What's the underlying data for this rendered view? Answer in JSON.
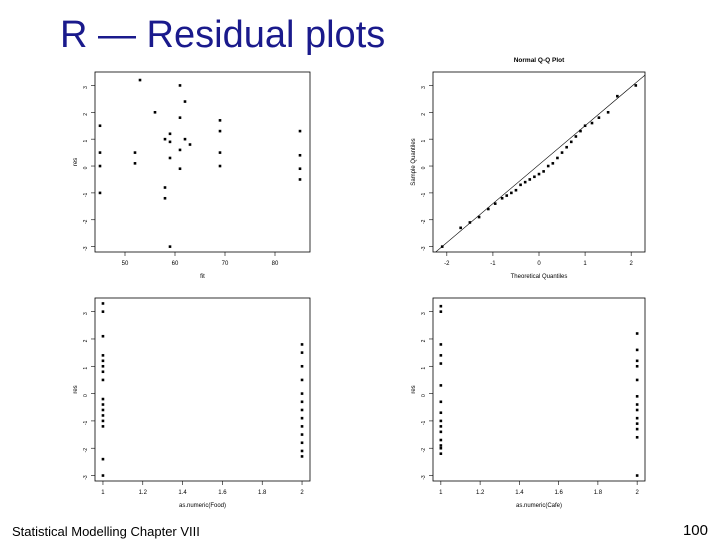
{
  "slide": {
    "title": "R — Residual plots",
    "footer_left": "Statistical Modelling   Chapter VIII",
    "page_number": "100"
  },
  "colors": {
    "title": "#1a1a8c",
    "points": "#000000",
    "frame": "#000000"
  },
  "chart_data": [
    {
      "type": "scatter",
      "title": "",
      "xlabel": "fit",
      "ylabel": "res",
      "xlim": [
        44,
        87
      ],
      "ylim": [
        -3.2,
        3.5
      ],
      "xticks": [
        50,
        60,
        70,
        80
      ],
      "yticks": [
        -3,
        -2,
        -1,
        0,
        1,
        2,
        3
      ],
      "grid": false,
      "points": [
        [
          45,
          1.5
        ],
        [
          45,
          0.5
        ],
        [
          45,
          0
        ],
        [
          45,
          -1
        ],
        [
          53,
          3.2
        ],
        [
          52,
          0.5
        ],
        [
          52,
          0.1
        ],
        [
          56,
          2.0
        ],
        [
          58,
          1.0
        ],
        [
          58,
          -0.8
        ],
        [
          58,
          -1.2
        ],
        [
          59,
          0.9
        ],
        [
          59,
          1.2
        ],
        [
          59,
          -3
        ],
        [
          59,
          0.3
        ],
        [
          61,
          3.0
        ],
        [
          61,
          1.8
        ],
        [
          61,
          -0.1
        ],
        [
          61,
          0.6
        ],
        [
          62,
          1.0
        ],
        [
          62,
          2.4
        ],
        [
          63,
          0.8
        ],
        [
          69,
          1.7
        ],
        [
          69,
          1.3
        ],
        [
          69,
          0.5
        ],
        [
          69,
          0
        ],
        [
          85,
          1.3
        ],
        [
          85,
          0.4
        ],
        [
          85,
          -0.1
        ],
        [
          85,
          -0.5
        ]
      ]
    },
    {
      "type": "scatter",
      "title": "Normal Q-Q Plot",
      "xlabel": "Theoretical Quantiles",
      "ylabel": "Sample Quantiles",
      "xlim": [
        -2.3,
        2.3
      ],
      "ylim": [
        -3.2,
        3.5
      ],
      "xticks": [
        -2,
        -1,
        0,
        1,
        2
      ],
      "yticks": [
        -3,
        -2,
        -1,
        0,
        1,
        2,
        3
      ],
      "grid": false,
      "reference_line": true,
      "points": [
        [
          -2.1,
          -3.0
        ],
        [
          -1.7,
          -2.3
        ],
        [
          -1.5,
          -2.1
        ],
        [
          -1.3,
          -1.9
        ],
        [
          -1.1,
          -1.6
        ],
        [
          -0.95,
          -1.4
        ],
        [
          -0.8,
          -1.2
        ],
        [
          -0.7,
          -1.1
        ],
        [
          -0.6,
          -1.0
        ],
        [
          -0.5,
          -0.9
        ],
        [
          -0.4,
          -0.7
        ],
        [
          -0.3,
          -0.6
        ],
        [
          -0.2,
          -0.5
        ],
        [
          -0.1,
          -0.4
        ],
        [
          0,
          -0.3
        ],
        [
          0.1,
          -0.2
        ],
        [
          0.2,
          0
        ],
        [
          0.3,
          0.1
        ],
        [
          0.4,
          0.3
        ],
        [
          0.5,
          0.5
        ],
        [
          0.6,
          0.7
        ],
        [
          0.7,
          0.9
        ],
        [
          0.8,
          1.1
        ],
        [
          0.9,
          1.3
        ],
        [
          1.0,
          1.5
        ],
        [
          1.15,
          1.6
        ],
        [
          1.3,
          1.8
        ],
        [
          1.5,
          2.0
        ],
        [
          1.7,
          2.6
        ],
        [
          2.1,
          3.0
        ]
      ]
    },
    {
      "type": "scatter",
      "title": "",
      "xlabel": "as.numeric(Food)",
      "ylabel": "res",
      "xlim": [
        0.96,
        2.04
      ],
      "ylim": [
        -3.2,
        3.5
      ],
      "xticks": [
        1.0,
        1.2,
        1.4,
        1.6,
        1.8,
        2.0
      ],
      "yticks": [
        -3,
        -2,
        -1,
        0,
        1,
        2,
        3
      ],
      "grid": false,
      "points": [
        [
          1,
          3.3
        ],
        [
          1,
          3.0
        ],
        [
          1,
          2.1
        ],
        [
          1,
          1.4
        ],
        [
          1,
          1.2
        ],
        [
          1,
          1.0
        ],
        [
          1,
          0.8
        ],
        [
          1,
          0.5
        ],
        [
          1,
          -0.2
        ],
        [
          1,
          -0.4
        ],
        [
          1,
          -0.6
        ],
        [
          1,
          -0.8
        ],
        [
          1,
          -1.0
        ],
        [
          1,
          -1.2
        ],
        [
          1,
          -2.4
        ],
        [
          1,
          -3.0
        ],
        [
          2,
          1.8
        ],
        [
          2,
          1.5
        ],
        [
          2,
          1.0
        ],
        [
          2,
          0.5
        ],
        [
          2,
          0
        ],
        [
          2,
          -0.3
        ],
        [
          2,
          -0.6
        ],
        [
          2,
          -0.9
        ],
        [
          2,
          -1.2
        ],
        [
          2,
          -1.5
        ],
        [
          2,
          -1.8
        ],
        [
          2,
          -2.1
        ],
        [
          2,
          -2.3
        ]
      ]
    },
    {
      "type": "scatter",
      "title": "",
      "xlabel": "as.numeric(Cafe)",
      "ylabel": "res",
      "xlim": [
        0.96,
        2.04
      ],
      "ylim": [
        -3.2,
        3.5
      ],
      "xticks": [
        1.0,
        1.2,
        1.4,
        1.6,
        1.8,
        2.0
      ],
      "yticks": [
        -3,
        -2,
        -1,
        0,
        1,
        2,
        3
      ],
      "grid": false,
      "points": [
        [
          1,
          3.2
        ],
        [
          1,
          3.0
        ],
        [
          1,
          1.8
        ],
        [
          1,
          1.4
        ],
        [
          1,
          1.1
        ],
        [
          1,
          0.3
        ],
        [
          1,
          -0.3
        ],
        [
          1,
          -0.7
        ],
        [
          1,
          -1.0
        ],
        [
          1,
          -1.2
        ],
        [
          1,
          -1.4
        ],
        [
          1,
          -1.7
        ],
        [
          1,
          -1.9
        ],
        [
          1,
          -2.0
        ],
        [
          1,
          -2.2
        ],
        [
          2,
          2.2
        ],
        [
          2,
          1.6
        ],
        [
          2,
          1.2
        ],
        [
          2,
          1.0
        ],
        [
          2,
          0.5
        ],
        [
          2,
          -0.1
        ],
        [
          2,
          -0.4
        ],
        [
          2,
          -0.6
        ],
        [
          2,
          -0.9
        ],
        [
          2,
          -1.1
        ],
        [
          2,
          -1.3
        ],
        [
          2,
          -1.6
        ],
        [
          2,
          -3.0
        ]
      ]
    }
  ]
}
